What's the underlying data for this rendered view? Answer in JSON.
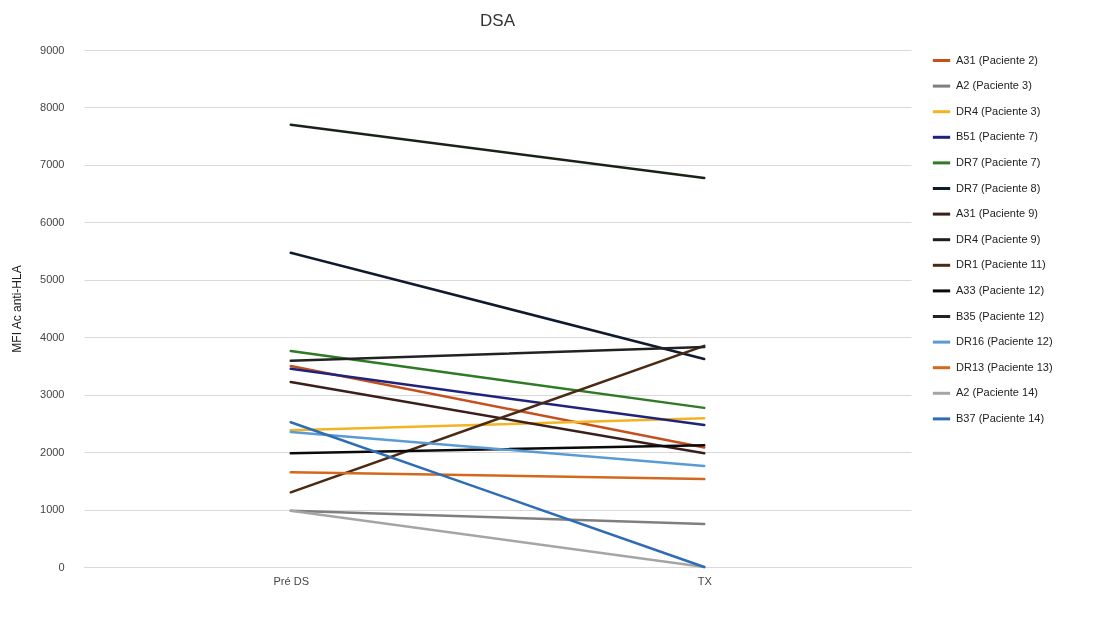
{
  "chart_data": {
    "type": "line",
    "title": "DSA",
    "ylabel": "MFI Ac anti-HLA",
    "categories": [
      "Pré DS",
      "TX"
    ],
    "ylim": [
      0,
      9000
    ],
    "yticks": [
      0,
      1000,
      2000,
      3000,
      4000,
      5000,
      6000,
      7000,
      8000,
      9000
    ],
    "grid": "y",
    "legend": "right",
    "marker": "none",
    "line_style": "solid",
    "series": [
      {
        "name": "A31 (Paciente 2)",
        "color": "#c5501e",
        "values": [
          3500,
          2080
        ]
      },
      {
        "name": "A2 (Paciente 3)",
        "color": "#7f7f7f",
        "values": [
          980,
          750
        ]
      },
      {
        "name": "DR4 (Paciente 3)",
        "color": "#f4b323",
        "values": [
          2380,
          2590
        ]
      },
      {
        "name": "B51 (Paciente 7)",
        "color": "#1f237a",
        "values": [
          3450,
          2470
        ]
      },
      {
        "name": "DR7 (Paciente 7)",
        "color": "#2e7a25",
        "values": [
          3760,
          2770
        ]
      },
      {
        "name": "DR7 (Paciente 8)",
        "color": "#101a2e",
        "values": [
          5470,
          3620
        ]
      },
      {
        "name": "A31 (Paciente 9)",
        "color": "#3a1f1a",
        "values": [
          3220,
          1980
        ]
      },
      {
        "name": "DR4 (Paciente 9)",
        "color": "#1a2218",
        "values": [
          7700,
          6770
        ]
      },
      {
        "name": "DR1 (Paciente 11)",
        "color": "#4a2a10",
        "values": [
          1300,
          3850
        ]
      },
      {
        "name": "A33 (Paciente 12)",
        "color": "#0a0a0a",
        "values": [
          1980,
          2120
        ]
      },
      {
        "name": "B35 (Paciente 12)",
        "color": "#222222",
        "values": [
          3590,
          3830
        ]
      },
      {
        "name": "DR16 (Paciente 12)",
        "color": "#5b9bd5",
        "values": [
          2350,
          1760
        ]
      },
      {
        "name": "DR13 (Paciente 13)",
        "color": "#d2691e",
        "values": [
          1650,
          1530
        ]
      },
      {
        "name": "A2 (Paciente 14)",
        "color": "#a5a5a5",
        "values": [
          980,
          0
        ]
      },
      {
        "name": "B37 (Paciente 14)",
        "color": "#2e6db4",
        "values": [
          2520,
          0
        ]
      }
    ]
  }
}
